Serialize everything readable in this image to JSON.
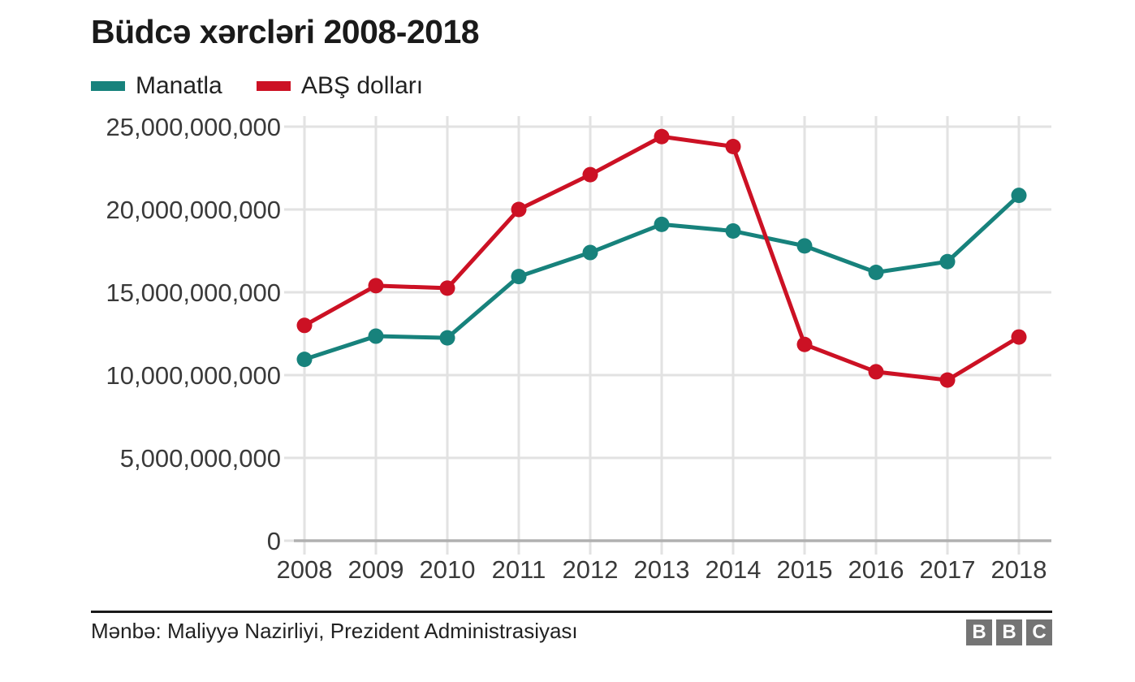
{
  "chart_data": {
    "type": "line",
    "title": "Büdcə xərcləri 2008-2018",
    "categories": [
      "2008",
      "2009",
      "2010",
      "2011",
      "2012",
      "2013",
      "2014",
      "2015",
      "2016",
      "2017",
      "2018"
    ],
    "series": [
      {
        "name": "Manatla",
        "color": "#17827C",
        "values": [
          10950000000,
          12350000000,
          12250000000,
          15950000000,
          17400000000,
          19100000000,
          18700000000,
          17800000000,
          16200000000,
          16850000000,
          20850000000
        ]
      },
      {
        "name": "ABŞ dolları",
        "color": "#CC1124",
        "values": [
          13000000000,
          15400000000,
          15250000000,
          20000000000,
          22100000000,
          24400000000,
          23800000000,
          11850000000,
          10200000000,
          9700000000,
          12300000000
        ]
      }
    ],
    "xlabel": "",
    "ylabel": "",
    "ylim": [
      0,
      25000000000
    ],
    "y_ticks": [
      0,
      5000000000,
      10000000000,
      15000000000,
      20000000000,
      25000000000
    ],
    "y_tick_labels": [
      "0",
      "5,000,000,000",
      "10,000,000,000",
      "15,000,000,000",
      "20,000,000,000",
      "25,000,000,000"
    ],
    "grid": "on",
    "legend_position": "top-left",
    "background": "#ffffff"
  },
  "footer": {
    "source": "Mənbə: Maliyyə Nazirliyi, Prezident Administrasiyası",
    "logo_letters": [
      "B",
      "B",
      "C"
    ]
  }
}
